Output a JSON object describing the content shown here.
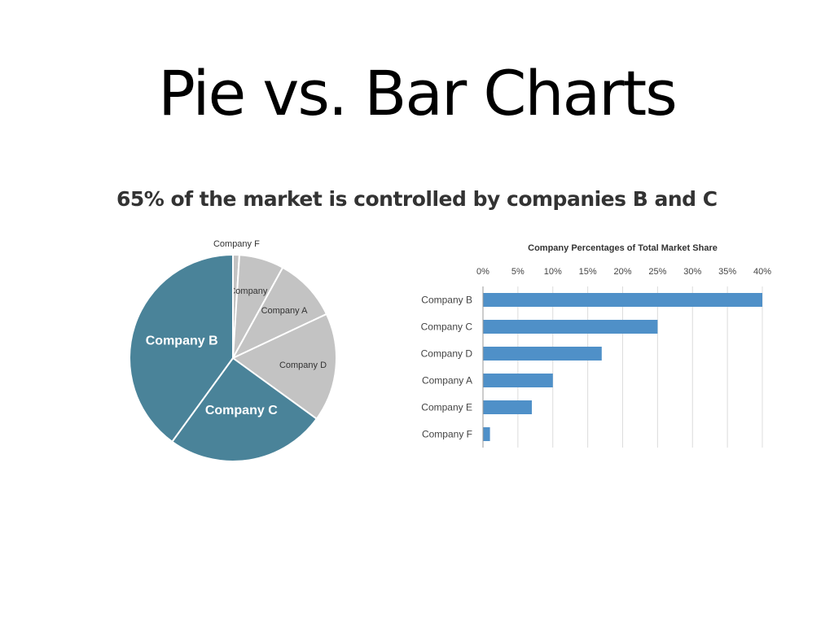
{
  "slide": {
    "title": "Pie vs. Bar Charts",
    "subtitle": "65% of the market is controlled by companies B and C"
  },
  "colors": {
    "highlight": "#4a8399",
    "other": "#c3c3c3",
    "bar": "#4f90c8"
  },
  "chart_data": [
    {
      "type": "pie",
      "title": "",
      "slices": [
        {
          "label": "Company F",
          "value": 1,
          "highlight": false
        },
        {
          "label": "Company E",
          "value": 7,
          "highlight": false
        },
        {
          "label": "Company A",
          "value": 10,
          "highlight": false
        },
        {
          "label": "Company D",
          "value": 17,
          "highlight": false
        },
        {
          "label": "Company C",
          "value": 25,
          "highlight": true
        },
        {
          "label": "Company B",
          "value": 40,
          "highlight": true
        }
      ]
    },
    {
      "type": "bar",
      "orientation": "horizontal",
      "title": "Company Percentages of Total Market Share",
      "categories": [
        "Company B",
        "Company C",
        "Company D",
        "Company A",
        "Company E",
        "Company F"
      ],
      "values": [
        40,
        25,
        17,
        10,
        7,
        1
      ],
      "xlim": [
        0,
        40
      ],
      "xticks": [
        "0%",
        "5%",
        "10%",
        "15%",
        "20%",
        "25%",
        "30%",
        "35%",
        "40%"
      ],
      "grid": true
    }
  ]
}
